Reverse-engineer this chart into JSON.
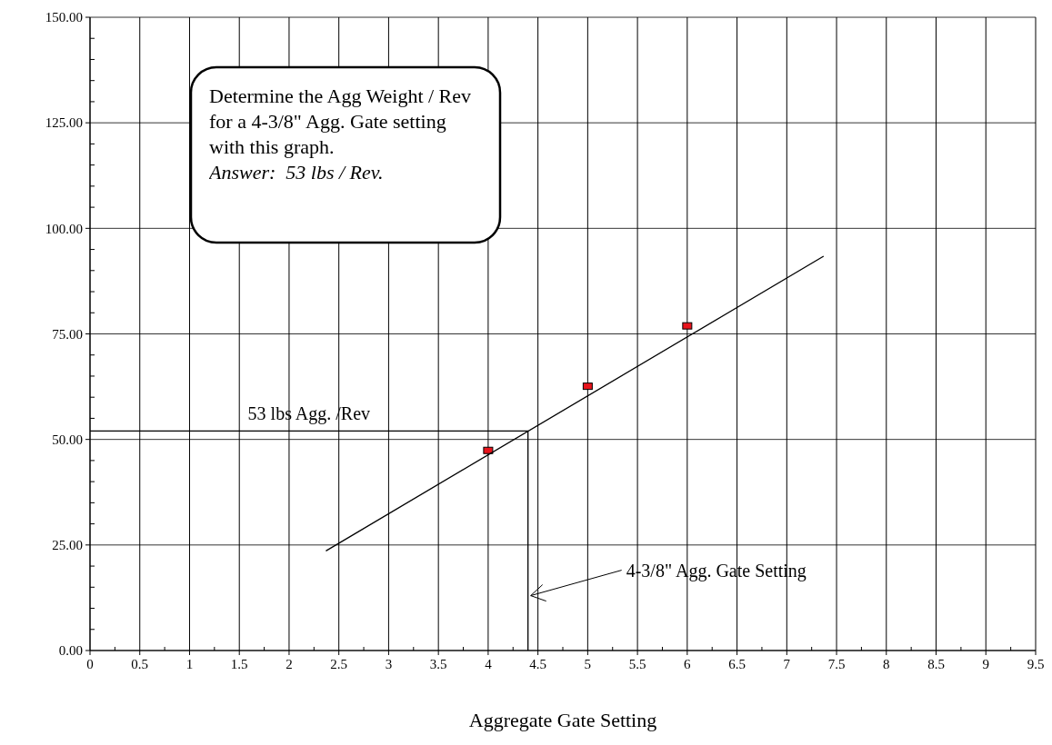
{
  "chart_data": {
    "type": "scatter",
    "xlabel": "Aggregate Gate Setting",
    "xlim": [
      0,
      9.5
    ],
    "ylim": [
      0,
      150
    ],
    "xticks": [
      0,
      0.5,
      1,
      1.5,
      2,
      2.5,
      3,
      3.5,
      4,
      4.5,
      5,
      5.5,
      6,
      6.5,
      7,
      7.5,
      8,
      8.5,
      9,
      9.5
    ],
    "yticks": [
      {
        "value": 0,
        "label": "0.00"
      },
      {
        "value": 25,
        "label": "25.00"
      },
      {
        "value": 50,
        "label": "50.00"
      },
      {
        "value": 75,
        "label": "75.00"
      },
      {
        "value": 100,
        "label": "100.00"
      },
      {
        "value": 125,
        "label": "125.00"
      },
      {
        "value": 150,
        "label": "150.00"
      }
    ],
    "grid": true,
    "line_style": "solid",
    "series": [
      {
        "marker": "square",
        "color": "#e8141c",
        "x": [
          4,
          5,
          6
        ],
        "values": [
          47.4,
          62.6,
          76.9
        ]
      },
      {
        "type": "line",
        "color": "#000000",
        "x": [
          2.37,
          7.37
        ],
        "values": [
          23.6,
          93.4
        ]
      },
      {
        "type": "line",
        "color": "#000000",
        "x": [
          0,
          4.4,
          4.4
        ],
        "values": [
          52,
          52,
          0
        ]
      }
    ],
    "annotations": [
      "Determine the Agg Weight / Rev for a 4-3/8\" Agg. Gate setting with this graph.",
      "Answer:  53 lbs / Rev.",
      {
        "text": "53 lbs Agg. /Rev",
        "x": 2.2,
        "y": 52
      },
      {
        "text": "4-3/8\" Agg. Gate Setting",
        "x": 4.4,
        "y": 13
      }
    ]
  }
}
